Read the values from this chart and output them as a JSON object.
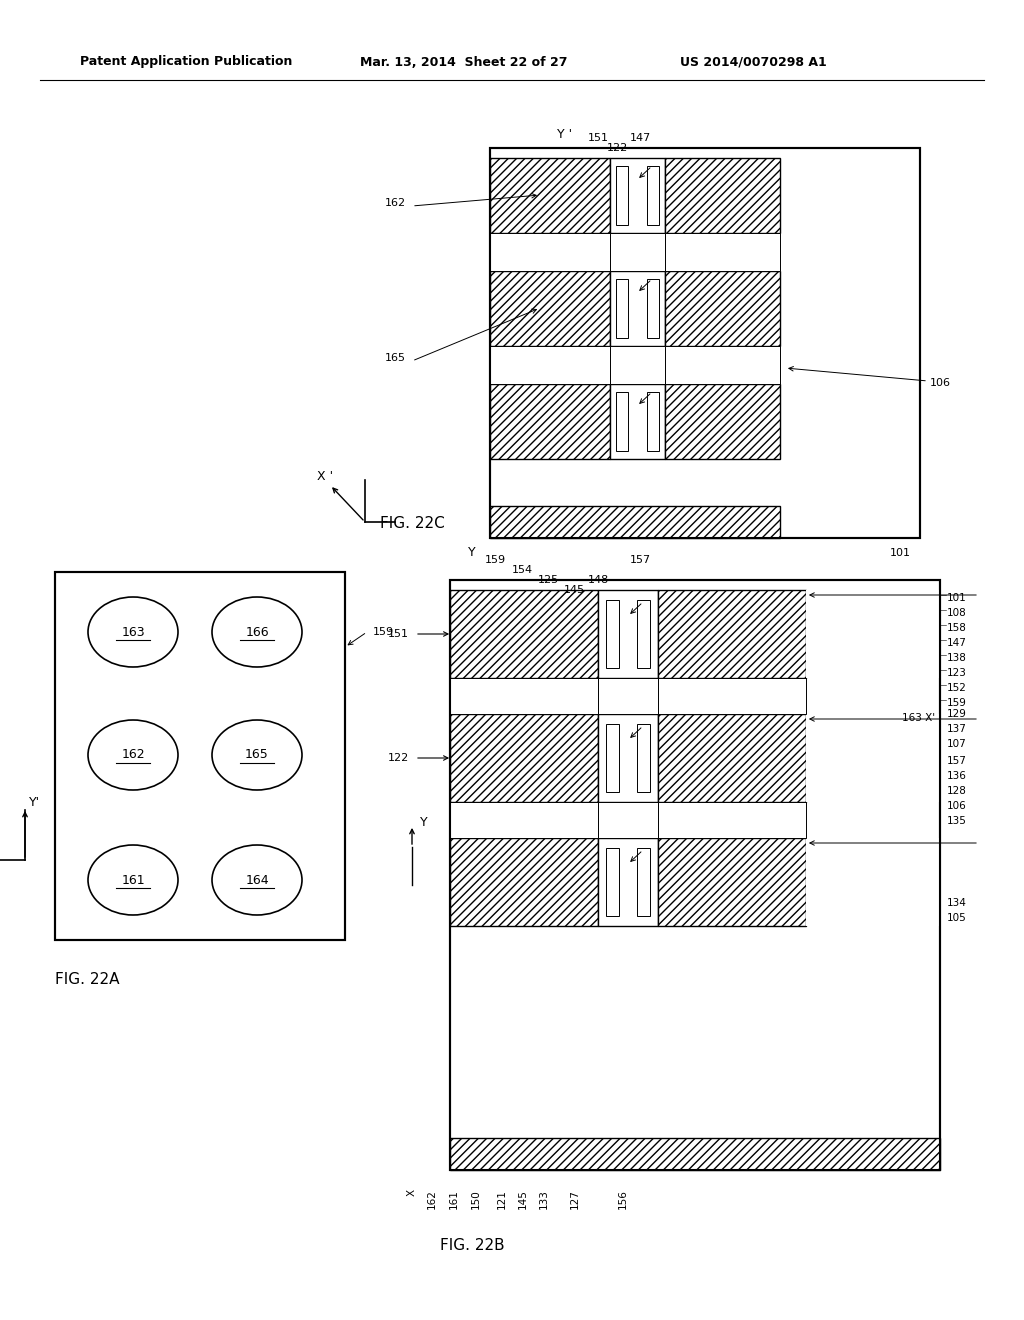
{
  "header_left": "Patent Application Publication",
  "header_middle": "Mar. 13, 2014  Sheet 22 of 27",
  "header_right": "US 2014/0070298 A1",
  "bg_color": "#ffffff",
  "fig_22a_label": "FIG. 22A",
  "fig_22b_label": "FIG. 22B",
  "fig_22c_label": "FIG. 22C",
  "hatch_pattern": "////",
  "lw_outer": 1.5,
  "lw_inner": 1.0,
  "lw_thin": 0.7,
  "fs_header": 9,
  "fs_label": 8,
  "fs_fig": 11,
  "fs_axis": 9
}
